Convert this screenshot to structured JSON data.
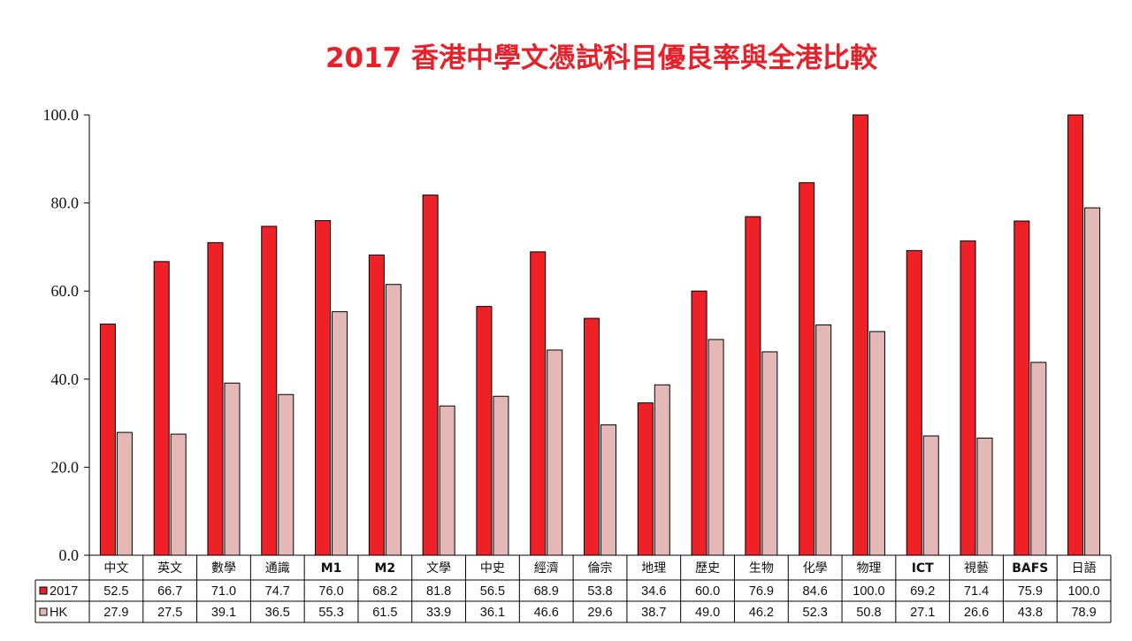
{
  "chart_data": {
    "type": "bar",
    "title": "2017 香港中學文憑試科目優良率與全港比較",
    "categories": [
      "中文",
      "英文",
      "數學",
      "通識",
      "M1",
      "M2",
      "文學",
      "中史",
      "經濟",
      "倫宗",
      "地理",
      "歷史",
      "生物",
      "化學",
      "物理",
      "ICT",
      "視藝",
      "BAFS",
      "日語"
    ],
    "series": [
      {
        "name": "2017",
        "color": "#ee2127",
        "values": [
          52.5,
          66.7,
          71.0,
          74.7,
          76.0,
          68.2,
          81.8,
          56.5,
          68.9,
          53.8,
          34.6,
          60.0,
          76.9,
          84.6,
          100.0,
          69.2,
          71.4,
          75.9,
          100.0
        ]
      },
      {
        "name": "HK",
        "color": "#e4b8b7",
        "values": [
          27.9,
          27.5,
          39.1,
          36.5,
          55.3,
          61.5,
          33.9,
          36.1,
          46.6,
          29.6,
          38.7,
          49.0,
          46.2,
          52.3,
          50.8,
          27.1,
          26.6,
          43.8,
          78.9
        ]
      }
    ],
    "y_ticks": [
      "0.0",
      "20.0",
      "40.0",
      "60.0",
      "80.0",
      "100.0"
    ],
    "ylim": [
      0,
      100
    ],
    "grid": false,
    "legend": "data-table",
    "data_table": true
  }
}
